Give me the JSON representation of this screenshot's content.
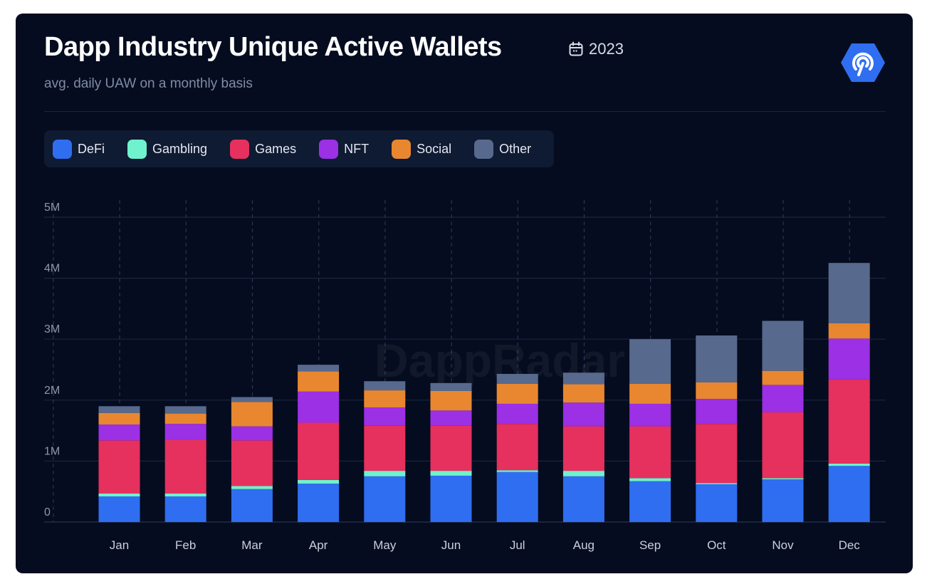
{
  "header": {
    "title": "Dapp Industry Unique Active Wallets",
    "year": "2023",
    "subtitle": "avg. daily UAW on a monthly basis",
    "watermark": "DappRadar"
  },
  "icons": {
    "calendar": "calendar-icon",
    "logo": "dappradar-logo-icon"
  },
  "colors": {
    "background": "#050c1f",
    "DeFi": "#2f6ef0",
    "Gambling": "#6ff2cd",
    "Games": "#e6305e",
    "NFT": "#9b30e4",
    "Social": "#e8872f",
    "Other": "#58698e"
  },
  "chart_data": {
    "type": "bar",
    "stacked": true,
    "title": "Dapp Industry Unique Active Wallets",
    "subtitle": "avg. daily UAW on a monthly basis",
    "xlabel": "",
    "ylabel": "",
    "ylim": [
      0,
      5000000
    ],
    "y_ticks": [
      "0",
      "1M",
      "2M",
      "3M",
      "4M",
      "5M"
    ],
    "grid": true,
    "legend_position": "top-left",
    "categories": [
      "Jan",
      "Feb",
      "Mar",
      "Apr",
      "May",
      "Jun",
      "Jul",
      "Aug",
      "Sep",
      "Oct",
      "Nov",
      "Dec"
    ],
    "series": [
      {
        "name": "DeFi",
        "values": [
          420000,
          420000,
          540000,
          630000,
          750000,
          760000,
          820000,
          750000,
          670000,
          620000,
          700000,
          920000
        ]
      },
      {
        "name": "Gambling",
        "values": [
          50000,
          50000,
          50000,
          60000,
          90000,
          80000,
          30000,
          90000,
          50000,
          20000,
          20000,
          40000
        ]
      },
      {
        "name": "Games",
        "values": [
          870000,
          880000,
          750000,
          940000,
          740000,
          740000,
          760000,
          730000,
          850000,
          970000,
          1080000,
          1380000
        ]
      },
      {
        "name": "NFT",
        "values": [
          260000,
          260000,
          230000,
          510000,
          300000,
          250000,
          330000,
          390000,
          370000,
          410000,
          450000,
          670000
        ]
      },
      {
        "name": "Social",
        "values": [
          190000,
          170000,
          400000,
          330000,
          280000,
          320000,
          330000,
          300000,
          330000,
          270000,
          230000,
          250000
        ]
      },
      {
        "name": "Other",
        "values": [
          110000,
          120000,
          80000,
          110000,
          150000,
          130000,
          160000,
          190000,
          730000,
          770000,
          820000,
          990000
        ]
      }
    ]
  }
}
